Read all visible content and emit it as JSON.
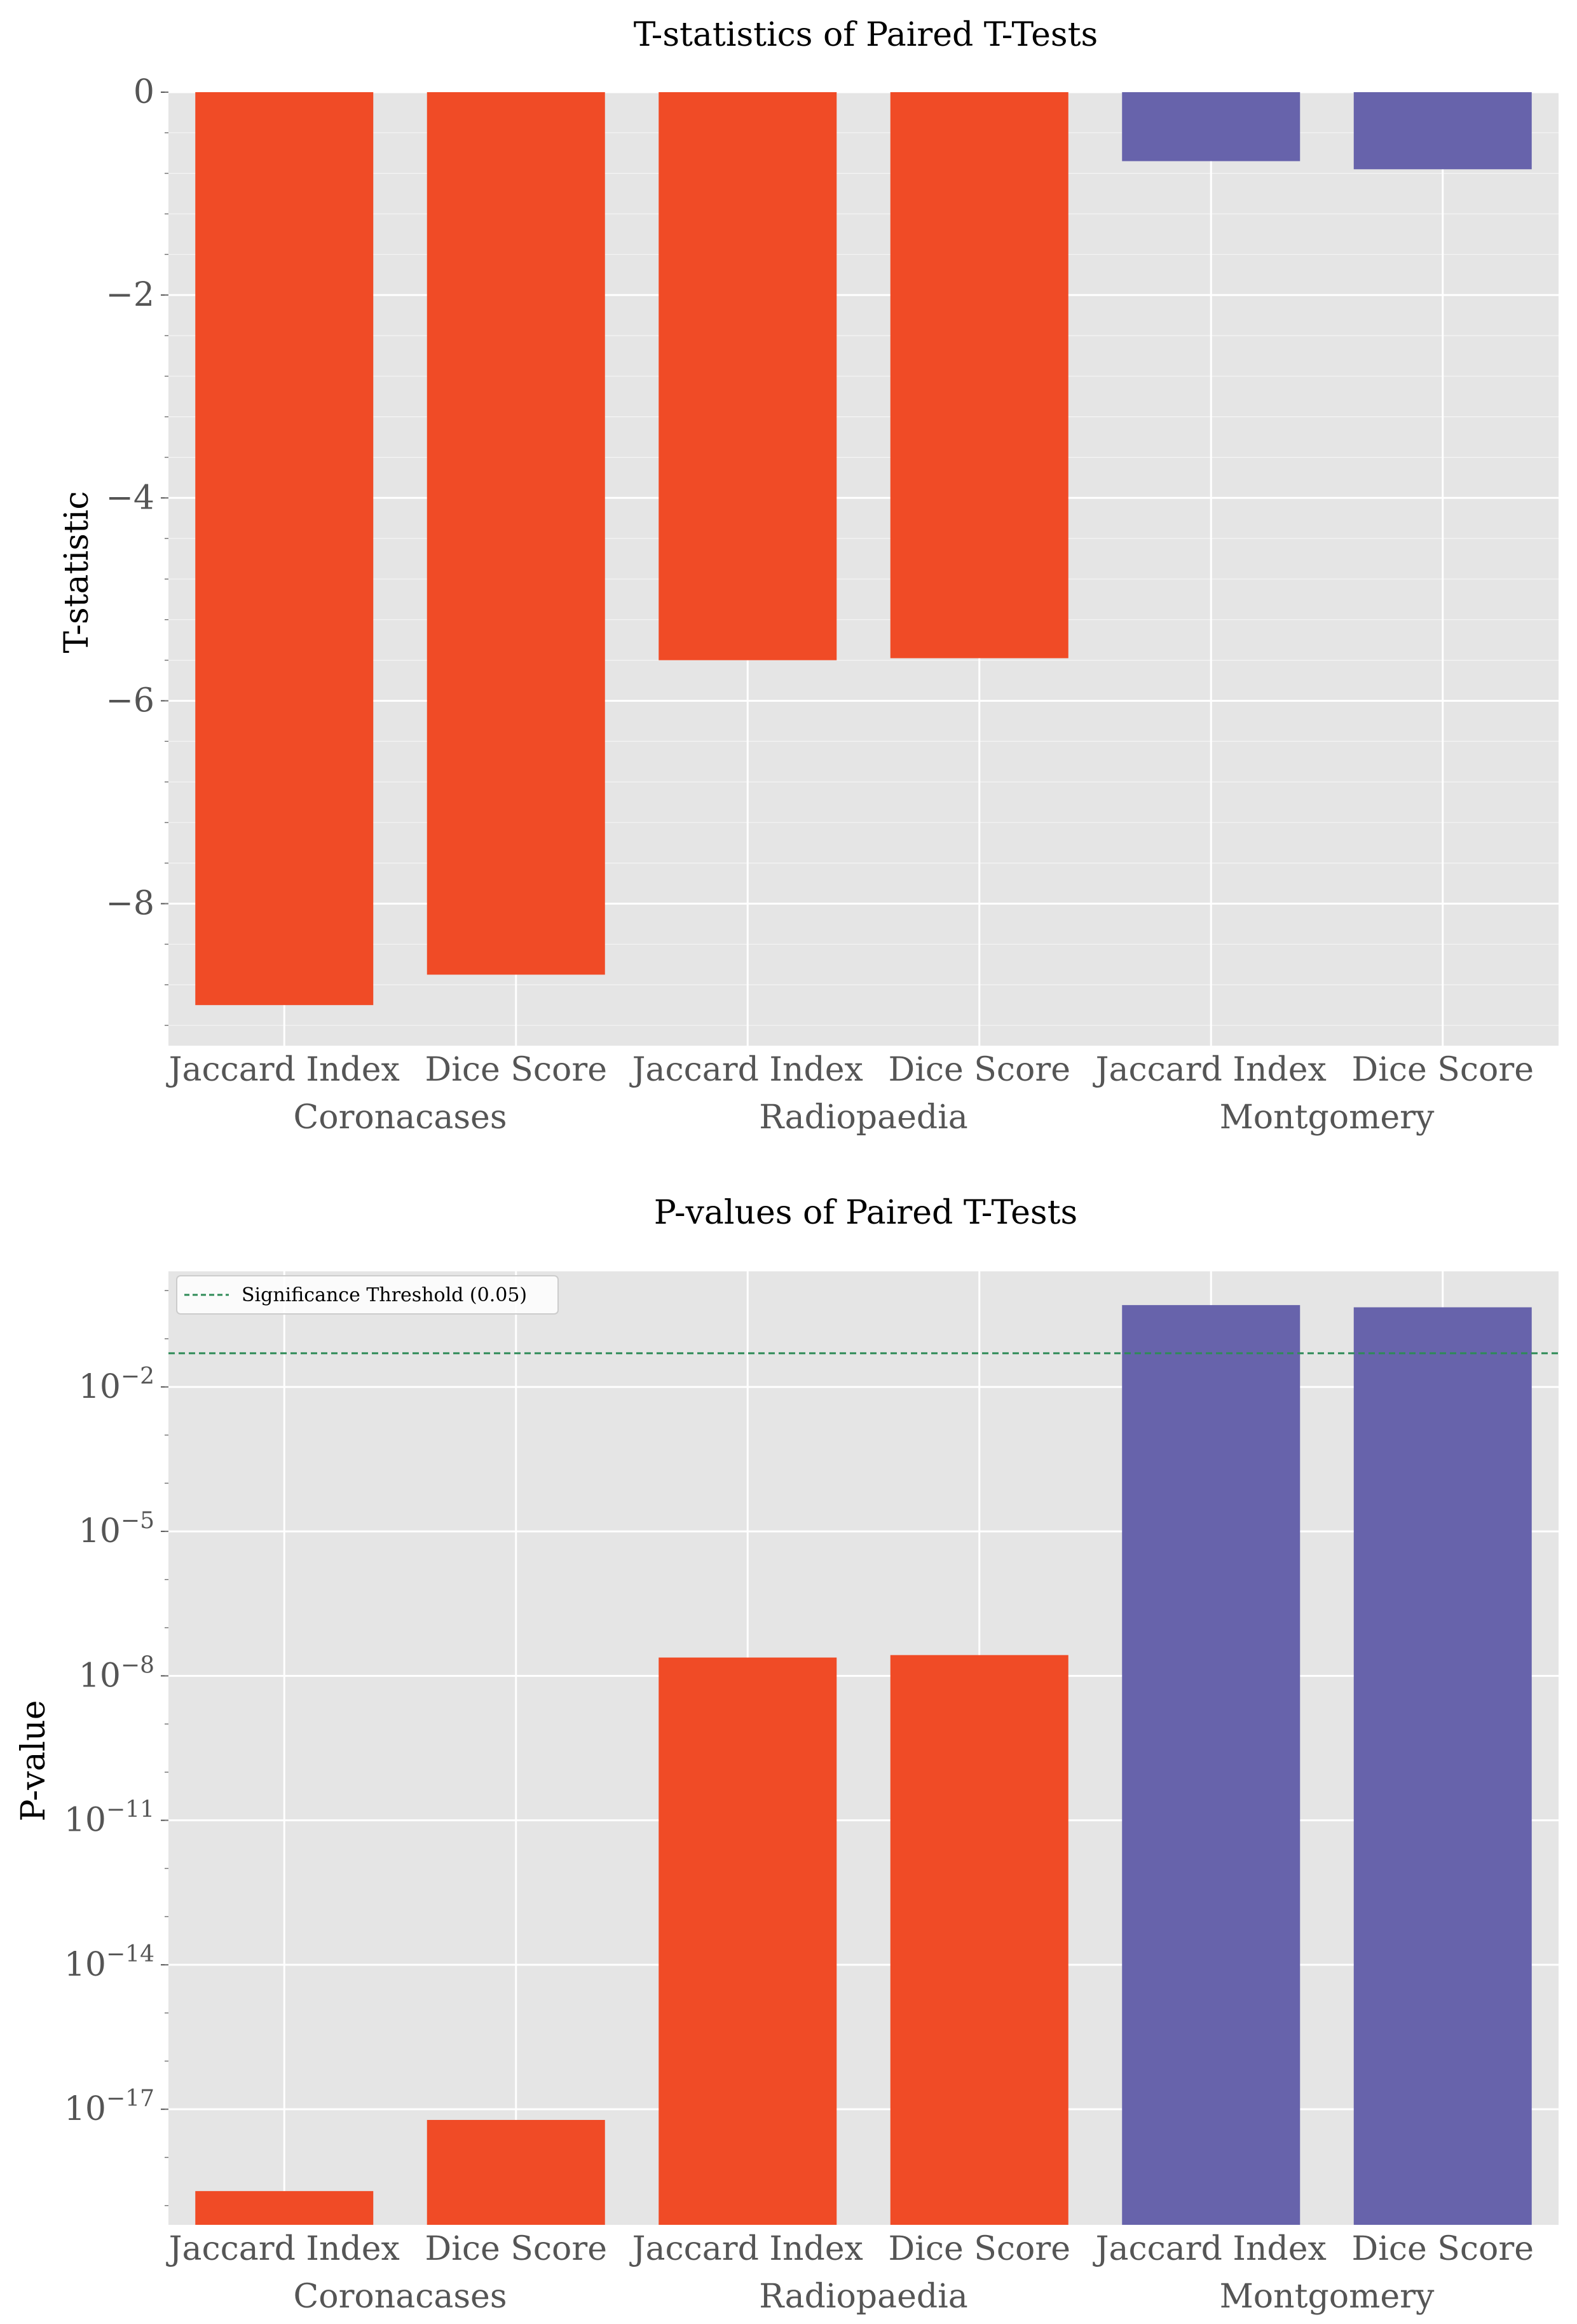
{
  "colors": {
    "significant": "#f04b26",
    "not_significant": "#6763ab",
    "threshold": "#2e8b57",
    "panel_bg": "#e5e5e5",
    "grid": "#ffffff"
  },
  "chart_data": [
    {
      "type": "bar",
      "title": "T-statistics of Paired T-Tests",
      "xlabel": "",
      "ylabel": "T-statistic",
      "categories": [
        "Jaccard Index",
        "Dice Score",
        "Jaccard Index",
        "Dice Score",
        "Jaccard Index",
        "Dice Score"
      ],
      "groups": [
        "Coronacases",
        "Radiopaedia",
        "Montgomery"
      ],
      "values": [
        -9.0,
        -8.7,
        -5.6,
        -5.58,
        -0.68,
        -0.76
      ],
      "significant": [
        true,
        true,
        true,
        true,
        false,
        false
      ],
      "ylim": [
        -9.4,
        0.0
      ],
      "yticks": [
        0,
        -2,
        -4,
        -6,
        -8
      ],
      "ytick_labels": [
        "0",
        "−2",
        "−4",
        "−6",
        "−8"
      ],
      "grid": true
    },
    {
      "type": "bar",
      "title": "P-values of Paired T-Tests",
      "xlabel": "",
      "ylabel": "P-value",
      "yscale": "log",
      "categories": [
        "Jaccard Index",
        "Dice Score",
        "Jaccard Index",
        "Dice Score",
        "Jaccard Index",
        "Dice Score"
      ],
      "groups": [
        "Coronacases",
        "Radiopaedia",
        "Montgomery"
      ],
      "values": [
        2e-19,
        6e-18,
        2.4e-08,
        2.7e-08,
        0.5,
        0.45
      ],
      "significant": [
        true,
        true,
        true,
        true,
        false,
        false
      ],
      "ylim_exponents": [
        -19.4,
        0.4
      ],
      "yticks_exponents": [
        -2,
        -5,
        -8,
        -11,
        -14,
        -17
      ],
      "ytick_base": "10",
      "ytick_exponent_labels": [
        "−2",
        "−5",
        "−8",
        "−11",
        "−14",
        "−17"
      ],
      "threshold": 0.05,
      "legend": {
        "label": "Significance Threshold (0.05)",
        "position": "top-left"
      },
      "grid": true
    }
  ]
}
